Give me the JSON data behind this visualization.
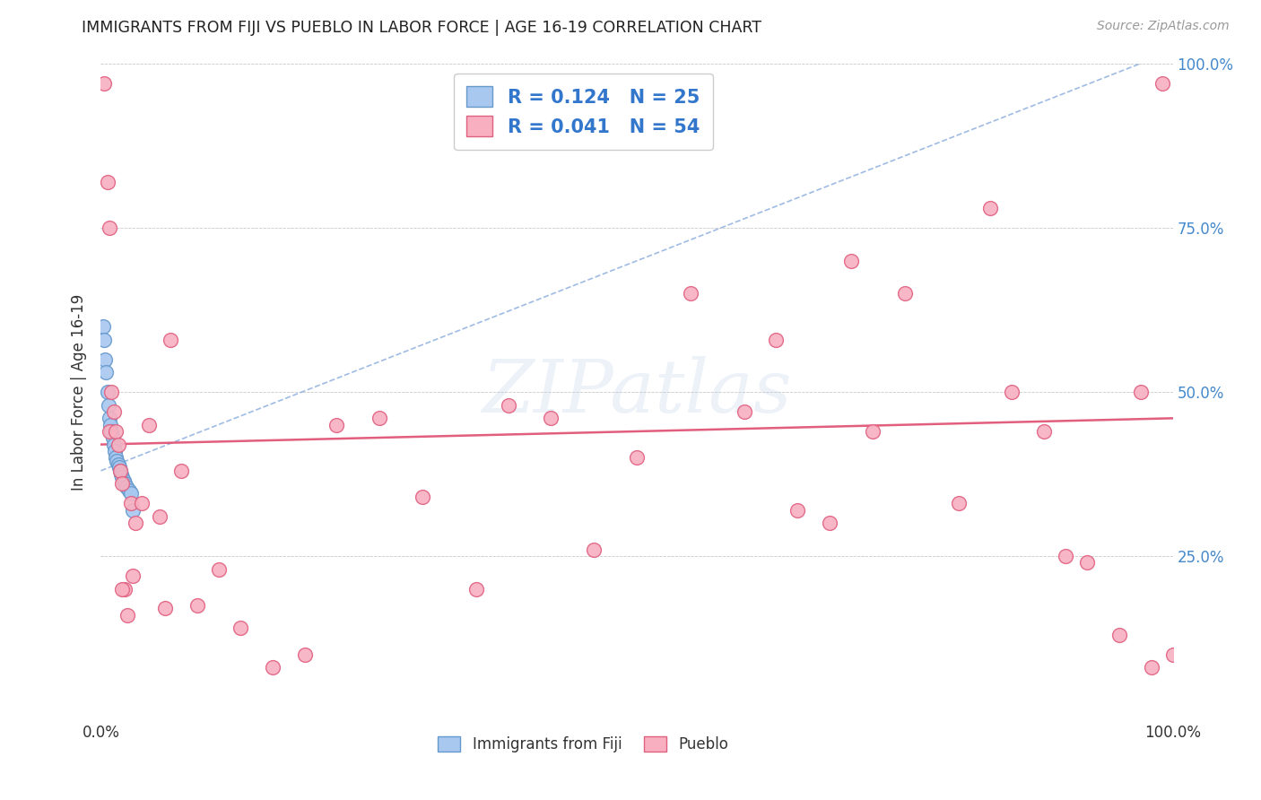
{
  "title": "IMMIGRANTS FROM FIJI VS PUEBLO IN LABOR FORCE | AGE 16-19 CORRELATION CHART",
  "source": "Source: ZipAtlas.com",
  "ylabel": "In Labor Force | Age 16-19",
  "xlim": [
    0.0,
    1.0
  ],
  "ylim": [
    0.0,
    1.0
  ],
  "xticks": [
    0.0,
    1.0
  ],
  "xticklabels": [
    "0.0%",
    "100.0%"
  ],
  "yticks": [
    0.0,
    0.25,
    0.5,
    0.75,
    1.0
  ],
  "yticklabels": [
    "",
    "25.0%",
    "50.0%",
    "75.0%",
    "100.0%"
  ],
  "fiji_color": "#a8c8f0",
  "fiji_edge_color": "#6699cc",
  "pueblo_color": "#f8b0c0",
  "pueblo_edge_color": "#e06080",
  "fiji_R": 0.124,
  "fiji_N": 25,
  "pueblo_R": 0.041,
  "pueblo_N": 54,
  "fiji_trend_color": "#88aadd",
  "pueblo_trend_color": "#e05575",
  "watermark": "ZIPatlas",
  "fiji_points_x": [
    0.002,
    0.003,
    0.004,
    0.005,
    0.006,
    0.007,
    0.008,
    0.009,
    0.01,
    0.011,
    0.012,
    0.013,
    0.014,
    0.015,
    0.016,
    0.017,
    0.018,
    0.019,
    0.02,
    0.021,
    0.022,
    0.024,
    0.026,
    0.028,
    0.03
  ],
  "fiji_points_y": [
    0.6,
    0.58,
    0.55,
    0.53,
    0.5,
    0.48,
    0.46,
    0.45,
    0.44,
    0.43,
    0.42,
    0.41,
    0.4,
    0.395,
    0.39,
    0.385,
    0.38,
    0.375,
    0.37,
    0.365,
    0.36,
    0.355,
    0.35,
    0.345,
    0.32
  ],
  "pueblo_points_x": [
    0.003,
    0.006,
    0.008,
    0.01,
    0.012,
    0.014,
    0.016,
    0.018,
    0.02,
    0.022,
    0.025,
    0.028,
    0.032,
    0.038,
    0.045,
    0.055,
    0.065,
    0.075,
    0.09,
    0.11,
    0.13,
    0.16,
    0.19,
    0.22,
    0.26,
    0.3,
    0.35,
    0.38,
    0.42,
    0.46,
    0.5,
    0.55,
    0.6,
    0.63,
    0.65,
    0.68,
    0.7,
    0.72,
    0.75,
    0.8,
    0.83,
    0.85,
    0.88,
    0.9,
    0.92,
    0.95,
    0.97,
    0.98,
    0.99,
    1.0,
    0.008,
    0.02,
    0.03,
    0.06
  ],
  "pueblo_points_y": [
    0.97,
    0.82,
    0.44,
    0.5,
    0.47,
    0.44,
    0.42,
    0.38,
    0.36,
    0.2,
    0.16,
    0.33,
    0.3,
    0.33,
    0.45,
    0.31,
    0.58,
    0.38,
    0.175,
    0.23,
    0.14,
    0.08,
    0.1,
    0.45,
    0.46,
    0.34,
    0.2,
    0.48,
    0.46,
    0.26,
    0.4,
    0.65,
    0.47,
    0.58,
    0.32,
    0.3,
    0.7,
    0.44,
    0.65,
    0.33,
    0.78,
    0.5,
    0.44,
    0.25,
    0.24,
    0.13,
    0.5,
    0.08,
    0.97,
    0.1,
    0.75,
    0.2,
    0.22,
    0.17
  ],
  "fiji_trend_x": [
    0.0,
    1.0
  ],
  "fiji_trend_y": [
    0.38,
    1.02
  ],
  "pueblo_trend_x": [
    0.0,
    1.0
  ],
  "pueblo_trend_y": [
    0.42,
    0.46
  ]
}
